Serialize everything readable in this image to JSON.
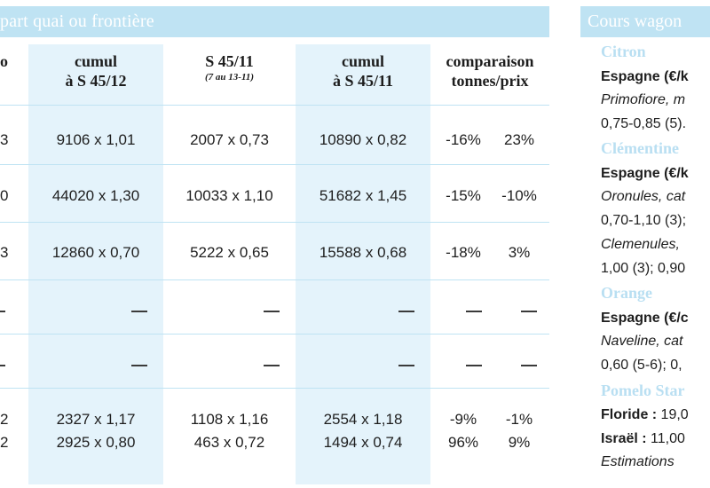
{
  "left_panel": {
    "header": "part quai ou frontière",
    "columns": [
      {
        "l1": "o",
        "l2": ""
      },
      {
        "l1": "cumul",
        "l2": "à S 45/12"
      },
      {
        "l1": "S 45/11",
        "sub": "(7 au 13-11)"
      },
      {
        "l1": "cumul",
        "l2": "à S 45/11"
      },
      {
        "l1": "comparaison",
        "l2": "tonnes/prix"
      }
    ],
    "rows": [
      {
        "c0": "3",
        "c1": "9106 x 1,01",
        "c2": "2007 x 0,73",
        "c3": "10890 x 0,82",
        "pt": "-16%",
        "pp": "23%"
      },
      {
        "c0": "0",
        "c1": "44020 x 1,30",
        "c2": "10033 x 1,10",
        "c3": "51682 x 1,45",
        "pt": "-15%",
        "pp": "-10%"
      },
      {
        "c0": "3",
        "c1": "12860 x 0,70",
        "c2": "5222 x 0,65",
        "c3": "15588 x 0,68",
        "pt": "-18%",
        "pp": "3%"
      },
      {
        "c0": "2",
        "c1": "2327 x 1,17",
        "c2": "1108 x 1,16",
        "c3": "2554 x 1,18",
        "pt": "-9%",
        "pp": "-1%"
      },
      {
        "c0": "2",
        "c1": "2925 x 0,80",
        "c2": "463 x 0,72",
        "c3": "1494 x 0,74",
        "pt": "96%",
        "pp": "9%"
      }
    ]
  },
  "right_panel": {
    "header": "Cours wagon",
    "products": [
      {
        "name": "Citron"
      },
      {
        "name": "Clémentine"
      },
      {
        "name": "Orange"
      },
      {
        "name": "Pomelo Star"
      }
    ],
    "lines": {
      "citron_origin": "Espagne (€/k",
      "citron_var": "Primofiore, m",
      "citron_price": "0,75-0,85 (5).",
      "clem_origin": "Espagne (€/k",
      "clem_var": "Oronules, cat",
      "clem_price1": "0,70-1,10 (3);",
      "clem_var2": "Clemenules,",
      "clem_price2": "1,00 (3); 0,90",
      "orange_origin": "Espagne (€/c",
      "orange_var": "Naveline, cat",
      "orange_price": "0,60 (5-6); 0,",
      "pomelo_fl_label": "Floride :",
      "pomelo_fl_val": " 19,0",
      "pomelo_is_label": "Israël :",
      "pomelo_is_val": " 11,00",
      "estimations": "Estimations"
    }
  }
}
